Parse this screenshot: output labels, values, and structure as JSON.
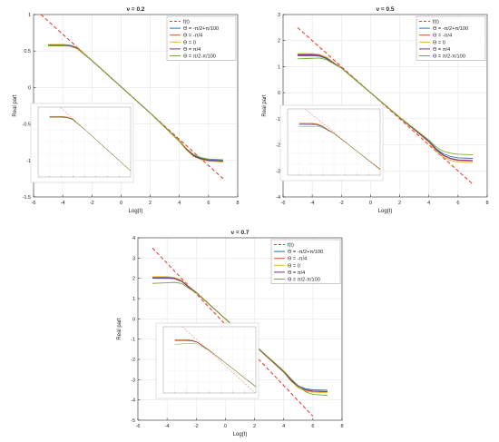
{
  "colors": {
    "grid": "#e6e6e6",
    "axis": "#333333",
    "frame": "#cccccc",
    "asymptote": "#e8423c"
  },
  "legend_labels": [
    "f(t)",
    "Θ = -π/2+π/100",
    "Θ = -π/4",
    "Θ = 0",
    "Θ = π/4",
    "Θ = π/2-π/100"
  ],
  "chart_data": [
    {
      "type": "line",
      "title": "ν = 0.2",
      "xlabel": "Log(t)",
      "ylabel": "Real part",
      "xlim": [
        -6,
        8
      ],
      "ylim": [
        -1.5,
        1
      ],
      "xticks": [
        "-6",
        "-4",
        "-2",
        "0",
        "2",
        "4",
        "6",
        "8"
      ],
      "yticks": [
        "-1.5",
        "-1",
        "-0.5",
        "0",
        "0.5",
        "1"
      ],
      "grid": true,
      "legend": "top-right",
      "asymptote": {
        "name": "f(t)",
        "color": "#e8423c",
        "dash": true,
        "x": [
          -5.5,
          7
        ],
        "y": [
          1.0,
          -1.25
        ]
      },
      "series": [
        {
          "name": "Θ = -π/2+π/100",
          "color": "#1f77b4",
          "x": [
            -5,
            -4,
            -3.5,
            -3,
            -2.5,
            -2,
            0,
            2,
            4,
            4.5,
            5,
            5.5,
            6,
            7
          ],
          "y": [
            0.58,
            0.58,
            0.575,
            0.54,
            0.45,
            0.37,
            0.01,
            -0.35,
            -0.73,
            -0.85,
            -0.93,
            -0.97,
            -0.99,
            -1.0
          ]
        },
        {
          "name": "Θ = -π/4",
          "color": "#d95319",
          "x": [
            -5,
            -4,
            -3.5,
            -3,
            -2.5,
            -2,
            0,
            2,
            4,
            4.5,
            5,
            5.5,
            6,
            7
          ],
          "y": [
            0.59,
            0.59,
            0.58,
            0.55,
            0.46,
            0.37,
            0.01,
            -0.35,
            -0.74,
            -0.86,
            -0.94,
            -0.98,
            -1.0,
            -1.01
          ]
        },
        {
          "name": "Θ = 0",
          "color": "#edb120",
          "x": [
            -5,
            -4,
            -3.5,
            -3,
            -2.5,
            -2,
            0,
            2,
            4,
            4.5,
            5,
            5.5,
            6,
            7
          ],
          "y": [
            0.59,
            0.59,
            0.58,
            0.55,
            0.46,
            0.37,
            0.01,
            -0.35,
            -0.74,
            -0.86,
            -0.95,
            -0.99,
            -1.01,
            -1.02
          ]
        },
        {
          "name": "Θ = π/4",
          "color": "#7e2f8e",
          "x": [
            -5,
            -4,
            -3.5,
            -3,
            -2.5,
            -2,
            0,
            2,
            4,
            4.5,
            5,
            5.5,
            6,
            7
          ],
          "y": [
            0.58,
            0.58,
            0.575,
            0.54,
            0.45,
            0.37,
            0.01,
            -0.35,
            -0.73,
            -0.85,
            -0.94,
            -0.98,
            -1.0,
            -1.01
          ]
        },
        {
          "name": "Θ = π/2-π/100",
          "color": "#77ac30",
          "x": [
            -5,
            -4,
            -3.5,
            -3,
            -2.5,
            -2,
            0,
            2,
            4,
            4.5,
            5,
            5.5,
            6,
            7
          ],
          "y": [
            0.57,
            0.57,
            0.565,
            0.53,
            0.45,
            0.37,
            0.01,
            -0.35,
            -0.73,
            -0.84,
            -0.92,
            -0.96,
            -0.98,
            -0.99
          ]
        }
      ]
    },
    {
      "type": "line",
      "title": "ν = 0.5",
      "xlabel": "Log(t)",
      "ylabel": "Real part",
      "xlim": [
        -6,
        8
      ],
      "ylim": [
        -4,
        3
      ],
      "xticks": [
        "-6",
        "-4",
        "-2",
        "0",
        "2",
        "4",
        "6",
        "8"
      ],
      "yticks": [
        "-4",
        "-3",
        "-2",
        "-1",
        "0",
        "1",
        "2",
        "3"
      ],
      "grid": true,
      "legend": "top-right",
      "asymptote": {
        "name": "f(t)",
        "color": "#e8423c",
        "dash": true,
        "x": [
          -5,
          7
        ],
        "y": [
          2.5,
          -3.5
        ]
      },
      "series": [
        {
          "name": "Θ = -π/2+π/100",
          "color": "#1f77b4",
          "x": [
            -5,
            -4,
            -3.5,
            -3,
            -2.5,
            -2,
            0,
            2,
            4,
            4.5,
            5,
            5.5,
            6,
            7
          ],
          "y": [
            1.42,
            1.42,
            1.4,
            1.3,
            1.12,
            0.95,
            0.0,
            -0.95,
            -1.85,
            -2.15,
            -2.35,
            -2.45,
            -2.5,
            -2.52
          ]
        },
        {
          "name": "Θ = -π/4",
          "color": "#d95319",
          "x": [
            -5,
            -4,
            -3.5,
            -3,
            -2.5,
            -2,
            0,
            2,
            4,
            4.5,
            5,
            5.5,
            6,
            7
          ],
          "y": [
            1.48,
            1.48,
            1.45,
            1.34,
            1.14,
            0.96,
            0.0,
            -0.96,
            -1.88,
            -2.2,
            -2.42,
            -2.54,
            -2.6,
            -2.62
          ]
        },
        {
          "name": "Θ = 0",
          "color": "#edb120",
          "x": [
            -5,
            -4,
            -3.5,
            -3,
            -2.5,
            -2,
            0,
            2,
            4,
            4.5,
            5,
            5.5,
            6,
            7
          ],
          "y": [
            1.5,
            1.5,
            1.47,
            1.36,
            1.15,
            0.96,
            0.0,
            -0.96,
            -1.9,
            -2.24,
            -2.48,
            -2.6,
            -2.66,
            -2.68
          ]
        },
        {
          "name": "Θ = π/4",
          "color": "#7e2f8e",
          "x": [
            -5,
            -4,
            -3.5,
            -3,
            -2.5,
            -2,
            0,
            2,
            4,
            4.5,
            5,
            5.5,
            6,
            7
          ],
          "y": [
            1.45,
            1.45,
            1.43,
            1.32,
            1.13,
            0.95,
            0.0,
            -0.95,
            -1.87,
            -2.18,
            -2.4,
            -2.52,
            -2.58,
            -2.6
          ]
        },
        {
          "name": "Θ = π/2-π/100",
          "color": "#77ac30",
          "x": [
            -5,
            -4,
            -3.5,
            -3,
            -2.5,
            -2,
            0,
            2,
            4,
            4.5,
            5,
            5.5,
            6,
            7
          ],
          "y": [
            1.3,
            1.32,
            1.33,
            1.26,
            1.1,
            0.94,
            0.0,
            -0.94,
            -1.82,
            -2.08,
            -2.25,
            -2.32,
            -2.36,
            -2.38
          ]
        }
      ]
    },
    {
      "type": "line",
      "title": "ν = 0.7",
      "xlabel": "Log(t)",
      "ylabel": "Real part",
      "xlim": [
        -6,
        8
      ],
      "ylim": [
        -5,
        4
      ],
      "xticks": [
        "-6",
        "-4",
        "-2",
        "0",
        "2",
        "4",
        "6",
        "8"
      ],
      "yticks": [
        "-5",
        "-4",
        "-3",
        "-2",
        "-1",
        "0",
        "1",
        "2",
        "3",
        "4"
      ],
      "grid": true,
      "legend": "top-right",
      "asymptote": {
        "name": "f(t)",
        "color": "#e8423c",
        "dash": true,
        "x": [
          -5,
          6
        ],
        "y": [
          3.5,
          -4.8
        ]
      },
      "series": [
        {
          "name": "Θ = -π/2+π/100",
          "color": "#1f77b4",
          "x": [
            -5,
            -4,
            -3.5,
            -3,
            -2.5,
            -2,
            0,
            2,
            4,
            4.5,
            5,
            5.5,
            6,
            7
          ],
          "y": [
            2.0,
            2.0,
            1.98,
            1.85,
            1.55,
            1.3,
            0.0,
            -1.3,
            -2.6,
            -3.0,
            -3.3,
            -3.45,
            -3.5,
            -3.52
          ]
        },
        {
          "name": "Θ = -π/4",
          "color": "#d95319",
          "x": [
            -5,
            -4,
            -3.5,
            -3,
            -2.5,
            -2,
            0,
            2,
            4,
            4.5,
            5,
            5.5,
            6,
            7
          ],
          "y": [
            2.05,
            2.05,
            2.02,
            1.88,
            1.58,
            1.31,
            0.0,
            -1.31,
            -2.62,
            -3.05,
            -3.36,
            -3.52,
            -3.58,
            -3.6
          ]
        },
        {
          "name": "Θ = 0",
          "color": "#edb120",
          "x": [
            -5,
            -4,
            -3.5,
            -3,
            -2.5,
            -2,
            0,
            2,
            4,
            4.5,
            5,
            5.5,
            6,
            7
          ],
          "y": [
            2.08,
            2.08,
            2.05,
            1.9,
            1.6,
            1.32,
            0.0,
            -1.32,
            -2.64,
            -3.08,
            -3.4,
            -3.56,
            -3.62,
            -3.64
          ]
        },
        {
          "name": "Θ = π/4",
          "color": "#7e2f8e",
          "x": [
            -5,
            -4,
            -3.5,
            -3,
            -2.5,
            -2,
            0,
            2,
            4,
            4.5,
            5,
            5.5,
            6,
            7
          ],
          "y": [
            2.03,
            2.03,
            2.0,
            1.86,
            1.56,
            1.3,
            0.0,
            -1.3,
            -2.61,
            -3.03,
            -3.34,
            -3.5,
            -3.56,
            -3.58
          ]
        },
        {
          "name": "Θ = π/2-π/100",
          "color": "#77ac30",
          "x": [
            -5,
            -4,
            -3.5,
            -3,
            -2.5,
            -2,
            0,
            2,
            4,
            4.5,
            5,
            5.5,
            6,
            7
          ],
          "y": [
            1.75,
            1.78,
            1.8,
            1.75,
            1.5,
            1.28,
            0.0,
            -1.28,
            -2.56,
            -2.95,
            -3.3,
            -3.6,
            -3.72,
            -3.78
          ]
        }
      ]
    }
  ]
}
